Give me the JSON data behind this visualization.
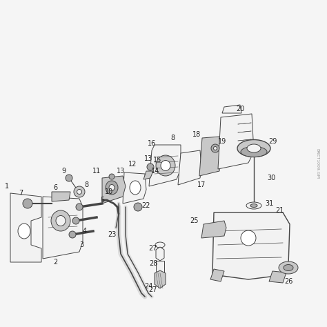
{
  "background_color": "#f5f5f5",
  "border_color": "#bbbbbb",
  "line_color": "#444444",
  "label_color": "#222222",
  "label_fontsize": 7.0,
  "watermark_text": "BRET1009.GM",
  "watermark_color": "#999999",
  "img_bg": "#f5f5f5",
  "part_fill": "#e8e8e8",
  "part_fill_med": "#c8c8c8",
  "part_fill_dark": "#aaaaaa",
  "part_fill_light": "#f2f2f2"
}
